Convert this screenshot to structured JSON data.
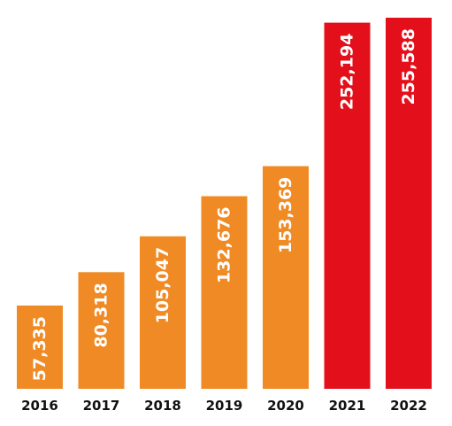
{
  "chart_data": {
    "type": "bar",
    "categories": [
      "2016",
      "2017",
      "2018",
      "2019",
      "2020",
      "2021",
      "2022"
    ],
    "values": [
      57335,
      80318,
      105047,
      132676,
      153369,
      252194,
      255588
    ],
    "value_labels": [
      "57,335",
      "80,318",
      "105,047",
      "132,676",
      "153,369",
      "252,194",
      "255,588"
    ],
    "bar_colors": [
      "#f08a24",
      "#f08a24",
      "#f08a24",
      "#f08a24",
      "#f08a24",
      "#e3101b",
      "#e3101b"
    ],
    "value_label_color": "#ffffff",
    "tick_label_color": "#111111",
    "title": "",
    "xlabel": "",
    "ylabel": "",
    "ylim": [
      0,
      255588
    ],
    "grid": false,
    "legend": "none"
  }
}
